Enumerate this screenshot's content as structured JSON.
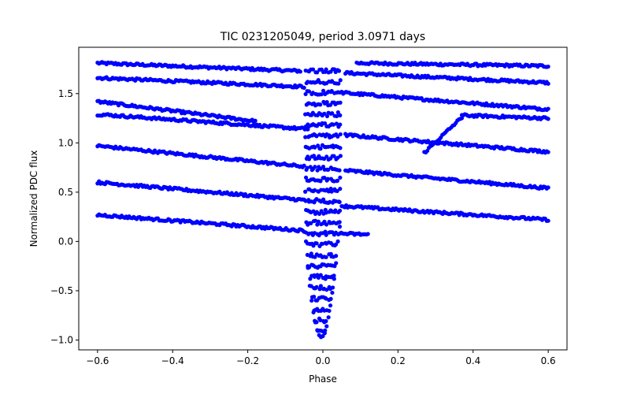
{
  "chart_data": {
    "type": "scatter",
    "title": "TIC 0231205049, period 3.0971 days",
    "xlabel": "Phase",
    "ylabel": "Normalized PDC flux",
    "xlim": [
      -0.65,
      0.65
    ],
    "ylim": [
      -1.1,
      1.97
    ],
    "xticks": [
      -0.6,
      -0.4,
      -0.2,
      0.0,
      0.2,
      0.4,
      0.6
    ],
    "xtick_labels": [
      "−0.6",
      "−0.4",
      "−0.2",
      "0.0",
      "0.2",
      "0.4",
      "0.6"
    ],
    "yticks": [
      -1.0,
      -0.5,
      0.0,
      0.5,
      1.0,
      1.5
    ],
    "ytick_labels": [
      "−1.0",
      "−0.5",
      "0.0",
      "0.5",
      "1.0",
      "1.5"
    ],
    "grid": false,
    "marker_color": "#0000ff",
    "bands": [
      {
        "left": {
          "x": [
            -0.6,
            -0.06
          ],
          "y": [
            1.81,
            1.73
          ]
        },
        "right": {
          "x": [
            0.09,
            0.6
          ],
          "y": [
            1.81,
            1.78
          ]
        }
      },
      {
        "left": {
          "x": [
            -0.6,
            -0.05
          ],
          "y": [
            1.66,
            1.57
          ]
        },
        "right": {
          "x": [
            0.06,
            0.6
          ],
          "y": [
            1.71,
            1.61
          ]
        }
      },
      {
        "left": {
          "x": [
            -0.6,
            -0.18
          ],
          "y": [
            1.42,
            1.22
          ]
        },
        "right": {
          "x": [
            0.05,
            0.6
          ],
          "y": [
            1.51,
            1.34
          ]
        }
      },
      {
        "left": {
          "x": [
            -0.6,
            -0.04
          ],
          "y": [
            1.29,
            1.14
          ]
        },
        "right": {
          "x": [
            0.37,
            0.6
          ],
          "y": [
            1.28,
            1.25
          ]
        }
      },
      {
        "left": {
          "x": [
            -0.6,
            -0.05
          ],
          "y": [
            0.97,
            0.76
          ]
        },
        "right": {
          "x": [
            0.06,
            0.6
          ],
          "y": [
            1.08,
            0.91
          ]
        }
      },
      {
        "left": {
          "x": [
            -0.6,
            -0.05
          ],
          "y": [
            0.6,
            0.42
          ]
        },
        "right": {
          "x": [
            0.06,
            0.6
          ],
          "y": [
            0.72,
            0.54
          ]
        }
      },
      {
        "left": {
          "x": [
            -0.6,
            -0.05
          ],
          "y": [
            0.27,
            0.11
          ]
        },
        "right": {
          "x": [
            0.05,
            0.6
          ],
          "y": [
            0.36,
            0.22
          ]
        }
      }
    ],
    "extra_segments": [
      {
        "x": [
          0.045,
          0.12
        ],
        "y": [
          0.08,
          0.07
        ]
      },
      {
        "x": [
          0.27,
          0.37
        ],
        "y": [
          0.9,
          1.26
        ]
      }
    ],
    "transit": {
      "x": [
        -0.045,
        -0.04,
        -0.035,
        -0.03,
        -0.025,
        -0.02,
        -0.015,
        -0.01,
        -0.005,
        0.0,
        0.005,
        0.01,
        0.015,
        0.02,
        0.025,
        0.03,
        0.035,
        0.04,
        0.045
      ],
      "bottom_y": [
        0.0,
        -0.25,
        -0.45,
        -0.6,
        -0.72,
        -0.82,
        -0.9,
        -0.95,
        -0.97,
        -0.96,
        -0.93,
        -0.86,
        -0.77,
        -0.65,
        -0.52,
        -0.38,
        -0.22,
        0.0,
        0.15
      ]
    }
  }
}
